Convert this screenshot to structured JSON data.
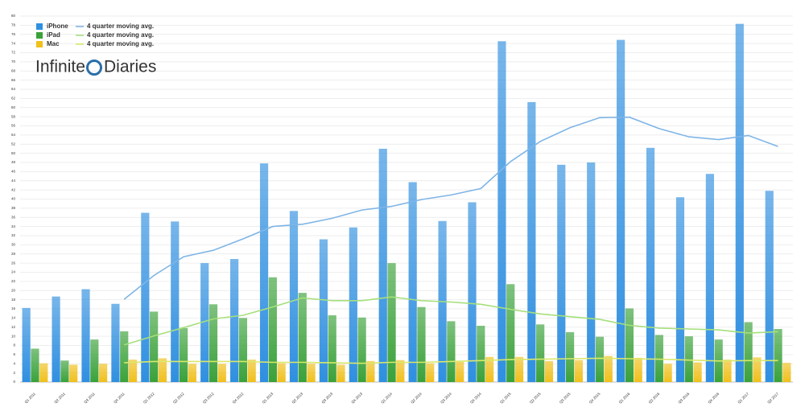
{
  "chart_data": {
    "type": "bar",
    "watermark": [
      "Infinite",
      "Diaries"
    ],
    "categories": [
      "Q1 2011",
      "Q2 2011",
      "Q3 2011",
      "Q4 2011",
      "Q1 2012",
      "Q2 2012",
      "Q3 2012",
      "Q4 2012",
      "Q1 2013",
      "Q2 2013",
      "Q3 2013",
      "Q4 2013",
      "Q1 2014",
      "Q2 2014",
      "Q3 2014",
      "Q4 2014",
      "Q1 2015",
      "Q2 2015",
      "Q3 2015",
      "Q4 2015",
      "Q1 2016",
      "Q2 2016",
      "Q3 2016",
      "Q4 2016",
      "Q1 2017",
      "Q2 2017"
    ],
    "series": [
      {
        "name": "iPhone",
        "type": "bar",
        "color": "#2f8fe0",
        "values": [
          16.2,
          18.7,
          20.3,
          17.1,
          37.0,
          35.1,
          26.0,
          26.9,
          47.8,
          37.4,
          31.2,
          33.8,
          51.0,
          43.7,
          35.2,
          39.3,
          74.5,
          61.2,
          47.5,
          48.0,
          74.8,
          51.2,
          40.4,
          45.5,
          78.3,
          41.8
        ]
      },
      {
        "name": "iPad",
        "type": "bar",
        "color": "#3aa13a",
        "values": [
          7.3,
          4.7,
          9.3,
          11.1,
          15.4,
          11.8,
          17.0,
          14.0,
          22.9,
          19.5,
          14.6,
          14.1,
          26.0,
          16.4,
          13.3,
          12.3,
          21.4,
          12.6,
          10.9,
          9.9,
          16.1,
          10.3,
          10.0,
          9.3,
          13.1,
          11.6
        ]
      },
      {
        "name": "Mac",
        "type": "bar",
        "color": "#f0c01c",
        "values": [
          4.1,
          3.8,
          4.0,
          4.9,
          5.2,
          4.0,
          4.0,
          4.9,
          4.1,
          4.0,
          3.8,
          4.6,
          4.8,
          4.1,
          4.4,
          5.5,
          5.5,
          4.6,
          4.8,
          5.7,
          5.3,
          4.0,
          4.3,
          4.9,
          5.4,
          4.2
        ]
      },
      {
        "name": "4 quarter moving avg.",
        "type": "line",
        "color": "#7fb5e6",
        "values": [
          null,
          null,
          null,
          18.1,
          23.3,
          27.4,
          28.8,
          31.3,
          34.0,
          34.5,
          35.8,
          37.6,
          38.4,
          39.9,
          40.9,
          42.3,
          48.2,
          52.6,
          55.6,
          57.8,
          57.9,
          55.4,
          53.6,
          53.0,
          53.9,
          51.5
        ]
      },
      {
        "name": "4 quarter moving avg.",
        "type": "line",
        "color": "#a6df7c",
        "values": [
          null,
          null,
          null,
          8.1,
          10.1,
          11.9,
          13.8,
          14.6,
          16.4,
          18.4,
          17.8,
          17.8,
          18.6,
          17.8,
          17.5,
          17.0,
          15.9,
          14.9,
          14.3,
          13.7,
          12.4,
          11.8,
          11.6,
          11.4,
          10.7,
          11.0
        ]
      },
      {
        "name": "4 quarter moving avg.",
        "type": "line",
        "color": "#d9e86a",
        "values": [
          null,
          null,
          null,
          4.2,
          4.5,
          4.5,
          4.5,
          4.5,
          4.3,
          4.3,
          4.2,
          4.1,
          4.3,
          4.3,
          4.5,
          4.7,
          4.9,
          5.0,
          5.1,
          5.2,
          5.1,
          5.0,
          4.8,
          4.6,
          4.7,
          4.7
        ]
      }
    ],
    "ylim": [
      0,
      80
    ],
    "yticks": [
      0,
      2,
      4,
      6,
      8,
      10,
      12,
      14,
      16,
      18,
      20,
      22,
      24,
      26,
      28,
      30,
      32,
      34,
      36,
      38,
      40,
      42,
      44,
      46,
      48,
      50,
      52,
      54,
      56,
      58,
      60,
      62,
      64,
      66,
      68,
      70,
      72,
      74,
      76,
      78,
      80
    ],
    "grid": true
  }
}
